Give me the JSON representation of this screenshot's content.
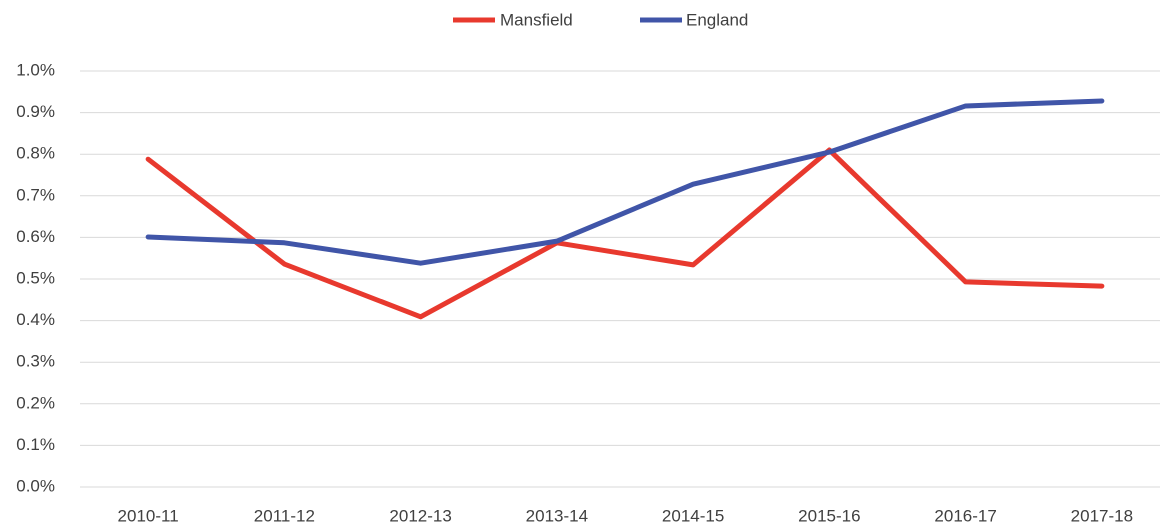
{
  "chart_data": {
    "type": "line",
    "categories": [
      "2010-11",
      "2011-12",
      "2012-13",
      "2013-14",
      "2014-15",
      "2015-16",
      "2016-17",
      "2017-18"
    ],
    "series": [
      {
        "name": "Mansfield",
        "color": "#e8392e",
        "values": [
          0.788,
          0.536,
          0.409,
          0.587,
          0.534,
          0.81,
          0.493,
          0.483
        ]
      },
      {
        "name": "England",
        "color": "#4055a8",
        "values": [
          0.601,
          0.587,
          0.538,
          0.591,
          0.728,
          0.805,
          0.916,
          0.928
        ]
      }
    ],
    "ylim": [
      0,
      1.0
    ],
    "yticks": [
      {
        "value": 0,
        "label": "0.0%"
      },
      {
        "value": 0.1,
        "label": "0.1%"
      },
      {
        "value": 0.2,
        "label": "0.2%"
      },
      {
        "value": 0.3,
        "label": "0.3%"
      },
      {
        "value": 0.4,
        "label": "0.4%"
      },
      {
        "value": 0.5,
        "label": "0.5%"
      },
      {
        "value": 0.6,
        "label": "0.6%"
      },
      {
        "value": 0.7,
        "label": "0.7%"
      },
      {
        "value": 0.8,
        "label": "0.8%"
      },
      {
        "value": 0.9,
        "label": "0.9%"
      },
      {
        "value": 1.0,
        "label": "1.0%"
      }
    ],
    "grid": true,
    "legend": "top"
  }
}
